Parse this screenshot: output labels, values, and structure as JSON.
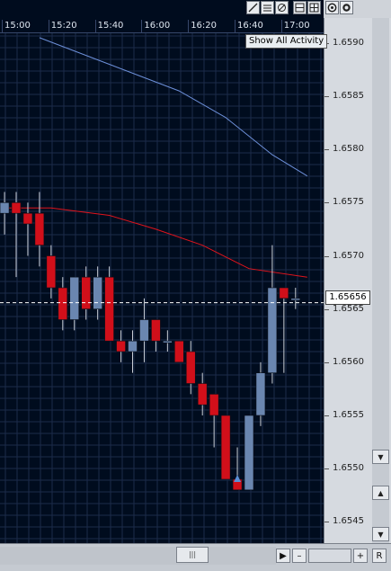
{
  "toolbar": {
    "icons": [
      "draw-line-icon",
      "horizontal-lines-icon",
      "delete-drawing-icon",
      "grid-1-icon",
      "grid-2-icon",
      "settings-icon",
      "target-icon"
    ]
  },
  "time_axis": {
    "labels": [
      "15:00",
      "15:20",
      "15:40",
      "16:00",
      "16:20",
      "16:40",
      "17:00"
    ]
  },
  "price_axis": {
    "labels": [
      "1.6590",
      "1.6585",
      "1.6580",
      "1.6575",
      "1.6570",
      "1.6565",
      "1.6560",
      "1.6555",
      "1.6550",
      "1.6545"
    ]
  },
  "current_price": "1.65656",
  "show_all_activity": "Show All Activity",
  "scrollbar": {
    "up": "▲",
    "down": "▼",
    "thumb": "|||",
    "play": "▶",
    "minus": "–",
    "plus": "+",
    "reset": "R"
  },
  "colors": {
    "background": "#000c1e",
    "grid": "#1c2b4a",
    "bull_candle": "#6a86b0",
    "bear_candle": "#d10f1a",
    "ma_red": "#e0141c",
    "ma_blue": "#6c8fd8",
    "price_line": "#ffffff"
  },
  "chart_data": {
    "type": "candlestick",
    "x_unit": "time",
    "ylim": [
      1.6543,
      1.6591
    ],
    "candles": [
      {
        "time": "14:55",
        "open": 1.6574,
        "high": 1.6576,
        "low": 1.6572,
        "close": 1.6575
      },
      {
        "time": "15:00",
        "open": 1.6575,
        "high": 1.6576,
        "low": 1.6568,
        "close": 1.6574
      },
      {
        "time": "15:05",
        "open": 1.6574,
        "high": 1.6575,
        "low": 1.657,
        "close": 1.6573
      },
      {
        "time": "15:10",
        "open": 1.6574,
        "high": 1.6576,
        "low": 1.6569,
        "close": 1.6571
      },
      {
        "time": "15:15",
        "open": 1.657,
        "high": 1.6571,
        "low": 1.6566,
        "close": 1.6567
      },
      {
        "time": "15:20",
        "open": 1.6567,
        "high": 1.6568,
        "low": 1.6563,
        "close": 1.6564
      },
      {
        "time": "15:25",
        "open": 1.6564,
        "high": 1.6568,
        "low": 1.6563,
        "close": 1.6568
      },
      {
        "time": "15:30",
        "open": 1.6568,
        "high": 1.6569,
        "low": 1.6564,
        "close": 1.6565
      },
      {
        "time": "15:35",
        "open": 1.6565,
        "high": 1.6569,
        "low": 1.6564,
        "close": 1.6568
      },
      {
        "time": "15:40",
        "open": 1.6568,
        "high": 1.6569,
        "low": 1.6562,
        "close": 1.6562
      },
      {
        "time": "15:45",
        "open": 1.6562,
        "high": 1.6563,
        "low": 1.656,
        "close": 1.6561
      },
      {
        "time": "15:50",
        "open": 1.6561,
        "high": 1.6563,
        "low": 1.6559,
        "close": 1.6562
      },
      {
        "time": "15:55",
        "open": 1.6562,
        "high": 1.6566,
        "low": 1.656,
        "close": 1.6564
      },
      {
        "time": "16:00",
        "open": 1.6564,
        "high": 1.6564,
        "low": 1.6561,
        "close": 1.6562
      },
      {
        "time": "16:05",
        "open": 1.6562,
        "high": 1.6563,
        "low": 1.6561,
        "close": 1.6562
      },
      {
        "time": "16:10",
        "open": 1.6562,
        "high": 1.6562,
        "low": 1.656,
        "close": 1.656
      },
      {
        "time": "16:15",
        "open": 1.6561,
        "high": 1.6562,
        "low": 1.6557,
        "close": 1.6558
      },
      {
        "time": "16:20",
        "open": 1.6558,
        "high": 1.6559,
        "low": 1.6555,
        "close": 1.6556
      },
      {
        "time": "16:25",
        "open": 1.6557,
        "high": 1.6557,
        "low": 1.6552,
        "close": 1.6555
      },
      {
        "time": "16:30",
        "open": 1.6555,
        "high": 1.6555,
        "low": 1.6549,
        "close": 1.6549
      },
      {
        "time": "16:35",
        "open": 1.6549,
        "high": 1.6552,
        "low": 1.6548,
        "close": 1.6548
      },
      {
        "time": "16:40",
        "open": 1.6548,
        "high": 1.6555,
        "low": 1.6548,
        "close": 1.6555
      },
      {
        "time": "16:45",
        "open": 1.6555,
        "high": 1.656,
        "low": 1.6554,
        "close": 1.6559
      },
      {
        "time": "16:50",
        "open": 1.6559,
        "high": 1.6571,
        "low": 1.6558,
        "close": 1.6567
      },
      {
        "time": "16:55",
        "open": 1.6567,
        "high": 1.6567,
        "low": 1.6559,
        "close": 1.6566
      },
      {
        "time": "17:00",
        "open": 1.6566,
        "high": 1.6567,
        "low": 1.6565,
        "close": 1.6566
      }
    ],
    "ma_red": [
      {
        "time": "14:55",
        "v": 1.65745
      },
      {
        "time": "15:15",
        "v": 1.65745
      },
      {
        "time": "15:40",
        "v": 1.65738
      },
      {
        "time": "16:00",
        "v": 1.65725
      },
      {
        "time": "16:20",
        "v": 1.6571
      },
      {
        "time": "16:40",
        "v": 1.65688
      },
      {
        "time": "17:05",
        "v": 1.6568
      }
    ],
    "ma_blue": [
      {
        "time": "15:10",
        "v": 1.65905
      },
      {
        "time": "15:40",
        "v": 1.6588
      },
      {
        "time": "16:10",
        "v": 1.65855
      },
      {
        "time": "16:30",
        "v": 1.6583
      },
      {
        "time": "16:50",
        "v": 1.65795
      },
      {
        "time": "17:05",
        "v": 1.65775
      }
    ],
    "marker": {
      "time": "16:35",
      "price": 1.6549,
      "shape": "triangle-up"
    },
    "current_price": 1.65656
  }
}
